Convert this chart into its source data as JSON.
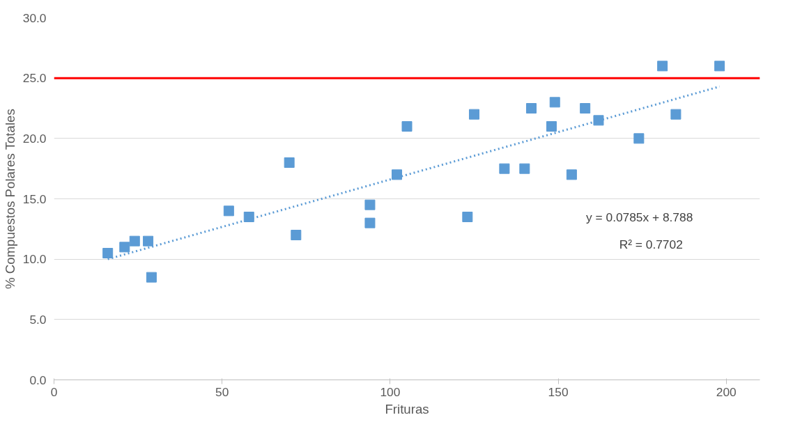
{
  "chart_data": {
    "type": "scatter",
    "xlabel": "Frituras",
    "ylabel": "% Compuestos Polares Totales",
    "xlim": [
      0,
      210
    ],
    "ylim": [
      0,
      30
    ],
    "xticks": [
      0,
      50,
      100,
      150,
      200
    ],
    "yticks": [
      {
        "value": 0,
        "label": "0.0"
      },
      {
        "value": 5,
        "label": "5.0"
      },
      {
        "value": 10,
        "label": "10.0"
      },
      {
        "value": 15,
        "label": "15.0"
      },
      {
        "value": 20,
        "label": "20.0"
      },
      {
        "value": 25,
        "label": "25.0"
      },
      {
        "value": 30,
        "label": "30.0"
      }
    ],
    "grid": "y",
    "series": [
      {
        "marker": "square",
        "color": "#5b9bd5",
        "x": [
          16,
          21,
          24,
          28,
          29,
          52,
          58,
          70,
          72,
          94,
          94,
          102,
          105,
          123,
          125,
          134,
          140,
          142,
          148,
          149,
          154,
          158,
          162,
          174,
          181,
          185,
          198
        ],
        "values": [
          10.5,
          11,
          11.5,
          11.5,
          8.5,
          14,
          13.5,
          18,
          12,
          14.5,
          13,
          17,
          21,
          13.5,
          22,
          17.5,
          17.5,
          22.5,
          21,
          23,
          17,
          22.5,
          21.5,
          20,
          26,
          22,
          26
        ]
      },
      {
        "type": "line",
        "color": "#5b9bd5",
        "line_style": "dotted",
        "x": [
          16,
          198
        ],
        "values": [
          10.0,
          24.3
        ]
      }
    ],
    "ref_lines": [
      {
        "axis": "y",
        "value": 25,
        "color": "#ff0000"
      }
    ],
    "annotations": [
      "y = 0.0785x + 8.788",
      "R² = 0.7702"
    ]
  }
}
